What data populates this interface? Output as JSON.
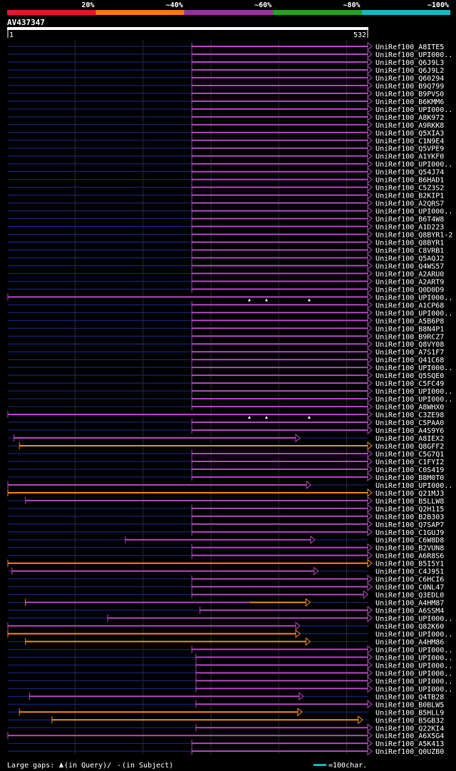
{
  "chart_data": {
    "type": "alignment-overview",
    "query": {
      "name": "AV437347",
      "start": "1",
      "end": "532",
      "length": 532
    },
    "identity_legend": [
      {
        "label": "20%",
        "color": "#e8142c"
      },
      {
        "label": "~40%",
        "color": "#ef7a1a"
      },
      {
        "label": "~60%",
        "color": "#9a2fa0"
      },
      {
        "label": "~80%",
        "color": "#21a31b"
      },
      {
        "label": "~100%",
        "color": "#19b4c4"
      }
    ],
    "colors": {
      "orange": "#f08a1e",
      "purple": "#b048c0",
      "gap": "#1a2a8a",
      "background": "#000000"
    },
    "hits": [
      {
        "name": "UniRef100_A8ITE5",
        "start": 272,
        "end": 540,
        "color": "purple"
      },
      {
        "name": "UniRef100_UPI000..",
        "start": 272,
        "end": 552,
        "color": "purple"
      },
      {
        "name": "UniRef100_Q6J9L3",
        "start": 272,
        "end": 552,
        "color": "purple"
      },
      {
        "name": "UniRef100_Q6J9L2",
        "start": 272,
        "end": 552,
        "color": "purple"
      },
      {
        "name": "UniRef100_Q60294",
        "start": 272,
        "end": 552,
        "color": "purple"
      },
      {
        "name": "UniRef100_B9Q799",
        "start": 272,
        "end": 549,
        "color": "purple"
      },
      {
        "name": "UniRef100_B9PVS0",
        "start": 272,
        "end": 549,
        "color": "purple"
      },
      {
        "name": "UniRef100_B6KMM6",
        "start": 272,
        "end": 550,
        "color": "purple"
      },
      {
        "name": "UniRef100_UPI000..",
        "start": 272,
        "end": 552,
        "color": "purple"
      },
      {
        "name": "UniRef100_A8K972",
        "start": 272,
        "end": 552,
        "color": "purple"
      },
      {
        "name": "UniRef100_A9RKK8",
        "start": 272,
        "end": 560,
        "color": "purple"
      },
      {
        "name": "UniRef100_Q5XIA3",
        "start": 272,
        "end": 552,
        "color": "purple"
      },
      {
        "name": "UniRef100_C1N9E4",
        "start": 272,
        "end": 560,
        "color": "purple"
      },
      {
        "name": "UniRef100_Q5VPE9",
        "start": 272,
        "end": 560,
        "color": "purple"
      },
      {
        "name": "UniRef100_A1YKF0",
        "start": 272,
        "end": 560,
        "color": "purple"
      },
      {
        "name": "UniRef100_UPI000..",
        "start": 272,
        "end": 552,
        "color": "purple"
      },
      {
        "name": "UniRef100_Q54J74",
        "start": 272,
        "end": 552,
        "color": "purple"
      },
      {
        "name": "UniRef100_B6HAD1",
        "start": 272,
        "end": 560,
        "color": "purple"
      },
      {
        "name": "UniRef100_C5Z3S2",
        "start": 272,
        "end": 560,
        "color": "purple"
      },
      {
        "name": "UniRef100_B2KIP1",
        "start": 272,
        "end": 552,
        "color": "purple"
      },
      {
        "name": "UniRef100_A2QRS7",
        "start": 272,
        "end": 560,
        "color": "purple"
      },
      {
        "name": "UniRef100_UPI000..",
        "start": 272,
        "end": 560,
        "color": "purple"
      },
      {
        "name": "UniRef100_B6T4W8",
        "start": 272,
        "end": 560,
        "color": "purple"
      },
      {
        "name": "UniRef100_A1D223",
        "start": 272,
        "end": 560,
        "color": "purple"
      },
      {
        "name": "UniRef100_Q8BYR1-2",
        "start": 272,
        "end": 552,
        "color": "purple"
      },
      {
        "name": "UniRef100_Q8BYR1",
        "start": 272,
        "end": 552,
        "color": "purple"
      },
      {
        "name": "UniRef100_C8VRB1",
        "start": 272,
        "end": 560,
        "color": "purple"
      },
      {
        "name": "UniRef100_Q5AQJ2",
        "start": 272,
        "end": 560,
        "color": "purple"
      },
      {
        "name": "UniRef100_Q4WS57",
        "start": 272,
        "end": 560,
        "color": "purple"
      },
      {
        "name": "UniRef100_A2ARU0",
        "start": 272,
        "end": 552,
        "color": "purple"
      },
      {
        "name": "UniRef100_A2ART9",
        "start": 272,
        "end": 552,
        "color": "purple"
      },
      {
        "name": "UniRef100_Q0D0D9",
        "start": 272,
        "end": 560,
        "color": "purple"
      },
      {
        "name": "UniRef100_UPI000..",
        "start": 1,
        "end": 532,
        "color": "purple",
        "lq": true
      },
      {
        "name": "UniRef100_A1CP68",
        "start": 272,
        "end": 560,
        "color": "purple"
      },
      {
        "name": "UniRef100_UPI000..",
        "start": 272,
        "end": 549,
        "color": "purple"
      },
      {
        "name": "UniRef100_A5B6P8",
        "start": 272,
        "end": 549,
        "color": "purple"
      },
      {
        "name": "UniRef100_B8N4P1",
        "start": 272,
        "end": 560,
        "color": "purple"
      },
      {
        "name": "UniRef100_B9RCZ7",
        "start": 272,
        "end": 549,
        "color": "purple"
      },
      {
        "name": "UniRef100_Q8VY08",
        "start": 272,
        "end": 549,
        "color": "purple"
      },
      {
        "name": "UniRef100_A7S1F7",
        "start": 272,
        "end": 560,
        "color": "purple"
      },
      {
        "name": "UniRef100_Q41C68",
        "start": 272,
        "end": 552,
        "color": "purple"
      },
      {
        "name": "UniRef100_UPI000..",
        "start": 272,
        "end": 552,
        "color": "purple"
      },
      {
        "name": "UniRef100_Q5SQE0",
        "start": 272,
        "end": 552,
        "color": "purple"
      },
      {
        "name": "UniRef100_C5FC49",
        "start": 272,
        "end": 560,
        "color": "purple"
      },
      {
        "name": "UniRef100_UPI000..",
        "start": 272,
        "end": 552,
        "color": "purple"
      },
      {
        "name": "UniRef100_UPI000..",
        "start": 272,
        "end": 552,
        "color": "purple"
      },
      {
        "name": "UniRef100_A8WHX0",
        "start": 272,
        "end": 552,
        "color": "purple"
      },
      {
        "name": "UniRef100_C3ZE98",
        "start": 1,
        "end": 532,
        "color": "purple",
        "lq": true
      },
      {
        "name": "UniRef100_C5PAA0",
        "start": 272,
        "end": 560,
        "color": "purple"
      },
      {
        "name": "UniRef100_A4S9Y6",
        "start": 272,
        "end": 560,
        "color": "purple"
      },
      {
        "name": "UniRef100_A8IEX2",
        "start": 10,
        "end": 425,
        "color": "purple"
      },
      {
        "name": "UniRef100_Q8GFF2",
        "start": 18,
        "end": 560,
        "color": "orange"
      },
      {
        "name": "UniRef100_C5G7Q1",
        "start": 272,
        "end": 560,
        "color": "purple"
      },
      {
        "name": "UniRef100_C1FYI2",
        "start": 272,
        "end": 560,
        "color": "purple"
      },
      {
        "name": "UniRef100_C0S419",
        "start": 272,
        "end": 560,
        "color": "purple"
      },
      {
        "name": "UniRef100_B8M0T0",
        "start": 272,
        "end": 560,
        "color": "purple"
      },
      {
        "name": "UniRef100_UPI000..",
        "start": 1,
        "end": 441,
        "color": "purple"
      },
      {
        "name": "UniRef100_Q21MJ3",
        "start": 1,
        "end": 560,
        "color": "orange"
      },
      {
        "name": "UniRef100_B5LLW8",
        "start": 27,
        "end": 552,
        "color": "purple"
      },
      {
        "name": "UniRef100_Q2H115",
        "start": 272,
        "end": 560,
        "color": "purple"
      },
      {
        "name": "UniRef100_B2B303",
        "start": 272,
        "end": 560,
        "color": "purple"
      },
      {
        "name": "UniRef100_Q7SAP7",
        "start": 272,
        "end": 560,
        "color": "purple"
      },
      {
        "name": "UniRef100_C1GUJ9",
        "start": 272,
        "end": 560,
        "color": "purple"
      },
      {
        "name": "UniRef100_C6W8D8",
        "start": 174,
        "end": 447,
        "color": "purple"
      },
      {
        "name": "UniRef100_B2VUN8",
        "start": 272,
        "end": 560,
        "color": "purple"
      },
      {
        "name": "UniRef100_A6R8S6",
        "start": 272,
        "end": 560,
        "color": "purple"
      },
      {
        "name": "UniRef100_B5I5Y1",
        "start": 1,
        "end": 560,
        "color": "orange"
      },
      {
        "name": "UniRef100_C4J951",
        "start": 7,
        "end": 452,
        "color": "purple"
      },
      {
        "name": "UniRef100_C6HCI6",
        "start": 272,
        "end": 560,
        "color": "purple"
      },
      {
        "name": "UniRef100_C0NL47",
        "start": 272,
        "end": 560,
        "color": "purple"
      },
      {
        "name": "UniRef100_Q3EDL0",
        "start": 272,
        "end": 525,
        "color": "purple"
      },
      {
        "name": "UniRef100_A4HM87",
        "start": 27,
        "end": 440,
        "color": "mixed"
      },
      {
        "name": "UniRef100_A6SSM4",
        "start": 284,
        "end": 560,
        "color": "purple"
      },
      {
        "name": "UniRef100_UPI000..",
        "start": 148,
        "end": 552,
        "color": "purple"
      },
      {
        "name": "UniRef100_Q82K60",
        "start": 1,
        "end": 425,
        "color": "purple"
      },
      {
        "name": "UniRef100_UPI000..",
        "start": 1,
        "end": 425,
        "color": "orange"
      },
      {
        "name": "UniRef100_A4HM86",
        "start": 27,
        "end": 440,
        "color": "orange"
      },
      {
        "name": "UniRef100_UPI000..",
        "start": 272,
        "end": 540,
        "color": "purple"
      },
      {
        "name": "UniRef100_UPI000..",
        "start": 278,
        "end": 552,
        "color": "purple"
      },
      {
        "name": "UniRef100_UPI000..",
        "start": 278,
        "end": 552,
        "color": "purple"
      },
      {
        "name": "UniRef100_UPI000..",
        "start": 278,
        "end": 552,
        "color": "purple"
      },
      {
        "name": "UniRef100_UPI000..",
        "start": 278,
        "end": 552,
        "color": "purple"
      },
      {
        "name": "UniRef100_UPI000..",
        "start": 278,
        "end": 540,
        "color": "purple"
      },
      {
        "name": "UniRef100_Q4TB28",
        "start": 33,
        "end": 430,
        "color": "purple"
      },
      {
        "name": "UniRef100_B0BLW5",
        "start": 278,
        "end": 552,
        "color": "purple"
      },
      {
        "name": "UniRef100_B5HLL9",
        "start": 18,
        "end": 428,
        "color": "orange"
      },
      {
        "name": "UniRef100_B5GB32",
        "start": 66,
        "end": 517,
        "color": "orange"
      },
      {
        "name": "UniRef100_Q22KI4",
        "start": 278,
        "end": 552,
        "color": "purple"
      },
      {
        "name": "UniRef100_A6X5G4",
        "start": 1,
        "end": 560,
        "color": "purple"
      },
      {
        "name": "UniRef100_A5K413",
        "start": 272,
        "end": 552,
        "color": "purple"
      },
      {
        "name": "UniRef100_Q0UZB0",
        "start": 272,
        "end": 560,
        "color": "purple"
      }
    ],
    "footer": {
      "gaps_label": "Large gaps:",
      "query_gap_text": "(in Query)/",
      "subject_gap_sym": "-",
      "subject_gap_text": "(in Subject)",
      "scale_text": "=100char."
    }
  }
}
